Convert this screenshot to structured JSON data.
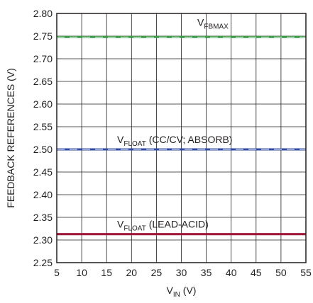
{
  "chart_data": {
    "type": "line",
    "xlabel": {
      "main": "V",
      "sub": "IN",
      "unit": " (V)"
    },
    "ylabel": "FEEDBACK REFERENCES (V)",
    "xlim": [
      5,
      55
    ],
    "ylim": [
      2.25,
      2.8
    ],
    "x_ticks": [
      "5",
      "10",
      "15",
      "20",
      "25",
      "30",
      "35",
      "40",
      "45",
      "50",
      "55"
    ],
    "y_ticks": [
      "2.25",
      "2.30",
      "2.35",
      "2.40",
      "2.45",
      "2.50",
      "2.55",
      "2.60",
      "2.65",
      "2.70",
      "2.75",
      "2.80"
    ],
    "grid": true,
    "x": [
      5,
      10,
      15,
      20,
      25,
      30,
      35,
      40,
      45,
      50,
      55
    ],
    "series": [
      {
        "name": {
          "main": "V",
          "sub": "FBMAX",
          "rest": ""
        },
        "values": [
          2.748,
          2.748,
          2.748,
          2.748,
          2.748,
          2.748,
          2.748,
          2.748,
          2.748,
          2.748,
          2.748
        ],
        "color": "#3a9a48",
        "dash": true
      },
      {
        "name": {
          "main": "V",
          "sub": "FLOAT",
          "rest": " (CC/CV; ABSORB)"
        },
        "values": [
          2.5,
          2.5,
          2.5,
          2.5,
          2.5,
          2.5,
          2.5,
          2.5,
          2.5,
          2.5,
          2.5
        ],
        "color": "#2b4aa0",
        "dash": true
      },
      {
        "name": {
          "main": "V",
          "sub": "FLOAT",
          "rest": " (LEAD-ACID)"
        },
        "values": [
          2.313,
          2.313,
          2.313,
          2.313,
          2.313,
          2.313,
          2.313,
          2.313,
          2.313,
          2.313,
          2.313
        ],
        "color": "#9e1b3c",
        "dash": false
      }
    ]
  }
}
